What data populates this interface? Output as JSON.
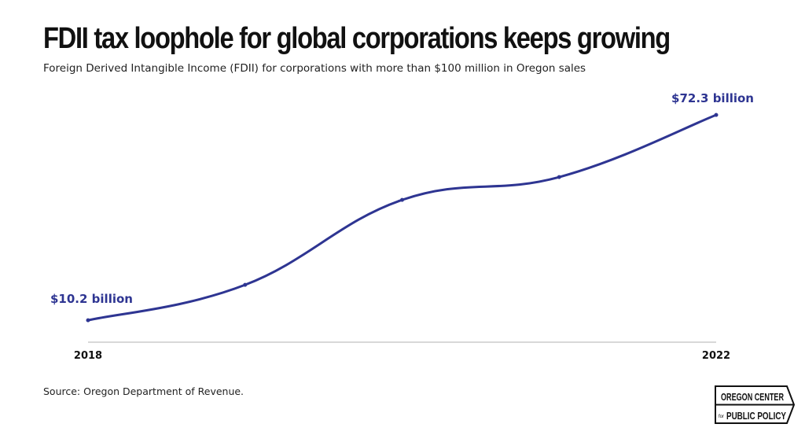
{
  "title": "FDII tax loophole for global corporations keeps growing",
  "subtitle": "Foreign Derived Intangible Income (FDII) for corporations with more than $100 million in Oregon sales",
  "source": "Source: Oregon Department of Revenue.",
  "logo": {
    "line1": "OREGON CENTER",
    "line2_small": "for",
    "line2": "PUBLIC POLICY"
  },
  "chart_data": {
    "type": "line",
    "title": "FDII tax loophole for global corporations keeps growing",
    "subtitle": "Foreign Derived Intangible Income (FDII) for corporations with more than $100 million in Oregon sales",
    "x": [
      2018,
      2019,
      2020,
      2021,
      2022
    ],
    "x_tick_labels": [
      "2018",
      "2022"
    ],
    "series": [
      {
        "values": [
          10.2,
          20.9,
          46.6,
          53.5,
          72.3
        ],
        "color": "#2e3592"
      }
    ],
    "data_labels": [
      {
        "index": 0,
        "text": "$10.2 billion"
      },
      {
        "index": 4,
        "text": "$72.3 billion"
      }
    ],
    "units": "billion USD",
    "grid": false,
    "legend": "none"
  }
}
